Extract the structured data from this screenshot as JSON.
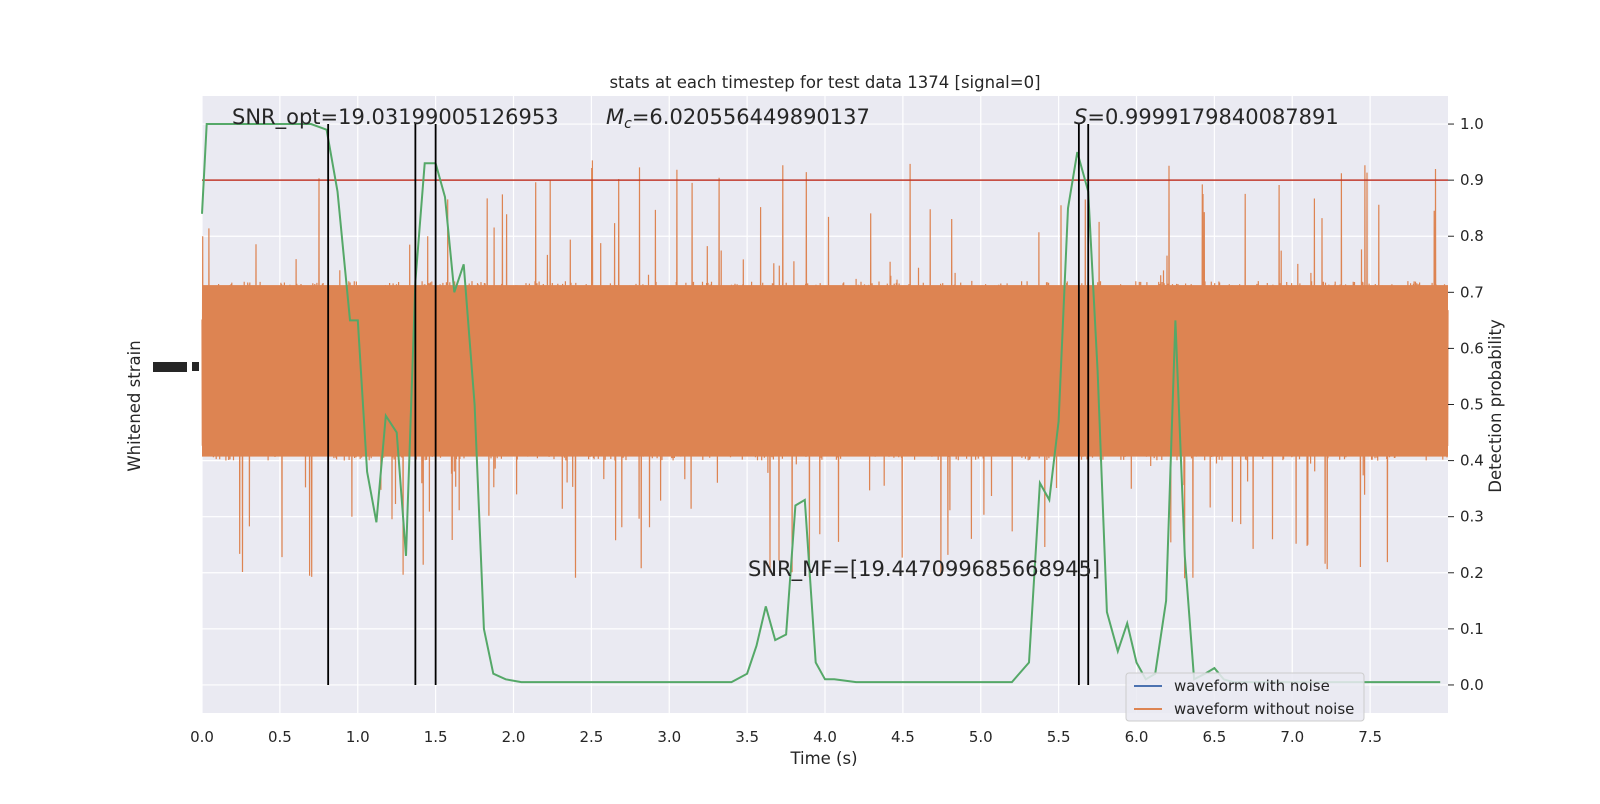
{
  "chart_data": {
    "type": "line",
    "title": "stats at each timestep for test data 1374 [signal=0]",
    "xlabel": "Time (s)",
    "ylabel_left": "Whitened strain",
    "ylabel_right": "Detection probability",
    "xlim": [
      0,
      8
    ],
    "ylim_right": [
      -0.05,
      1.05
    ],
    "grid": true,
    "legend_position": "lower-right",
    "x_ticks": [
      "0.0",
      "0.5",
      "1.0",
      "1.5",
      "2.0",
      "2.5",
      "3.0",
      "3.5",
      "4.0",
      "4.5",
      "5.0",
      "5.5",
      "6.0",
      "6.5",
      "7.0",
      "7.5"
    ],
    "y_ticks_right": [
      "0.0",
      "0.1",
      "0.2",
      "0.3",
      "0.4",
      "0.5",
      "0.6",
      "0.7",
      "0.8",
      "0.9",
      "1.0"
    ],
    "annotations": {
      "snr_opt": "SNR_opt=19.03199005126953",
      "chirp_mass_symbol": "M",
      "chirp_mass_subscript": "c",
      "chirp_mass_value": "=6.020556449890137",
      "s_symbol": "S",
      "s_value": "=0.9999179840087891",
      "snr_mf": "SNR_MF=[19.447099685668945]"
    },
    "threshold": 0.9,
    "vertical_lines": [
      0.81,
      1.37,
      1.5,
      5.63,
      5.69
    ],
    "series": [
      {
        "name": "waveform with noise",
        "color": "#4c72b0",
        "values": []
      },
      {
        "name": "waveform without noise",
        "color": "#dd8452",
        "noise_band": [
          0.4,
          0.72
        ],
        "spike_range": [
          0.2,
          0.99
        ]
      },
      {
        "color": "#55a868",
        "x": [
          0.0,
          0.03,
          0.06,
          0.12,
          0.25,
          0.4,
          0.55,
          0.7,
          0.8,
          0.87,
          0.95,
          1.0,
          1.06,
          1.12,
          1.18,
          1.25,
          1.31,
          1.37,
          1.43,
          1.5,
          1.56,
          1.62,
          1.68,
          1.75,
          1.81,
          1.87,
          1.95,
          2.05,
          2.2,
          2.4,
          2.6,
          2.8,
          3.0,
          3.2,
          3.4,
          3.5,
          3.56,
          3.62,
          3.68,
          3.75,
          3.81,
          3.87,
          3.94,
          4.0,
          4.06,
          4.2,
          4.4,
          4.6,
          4.8,
          5.0,
          5.2,
          5.31,
          5.38,
          5.44,
          5.5,
          5.56,
          5.62,
          5.69,
          5.75,
          5.81,
          5.88,
          5.94,
          6.0,
          6.06,
          6.12,
          6.19,
          6.25,
          6.31,
          6.37,
          6.44,
          6.5,
          6.56,
          6.62,
          6.68,
          6.8,
          7.0,
          7.2,
          7.4,
          7.6,
          7.8,
          7.95
        ],
        "y": [
          0.84,
          1.0,
          1.0,
          1.0,
          1.0,
          1.0,
          1.0,
          1.0,
          0.99,
          0.88,
          0.65,
          0.65,
          0.38,
          0.29,
          0.48,
          0.45,
          0.23,
          0.72,
          0.93,
          0.93,
          0.87,
          0.7,
          0.75,
          0.5,
          0.1,
          0.02,
          0.01,
          0.005,
          0.005,
          0.005,
          0.005,
          0.005,
          0.005,
          0.005,
          0.005,
          0.02,
          0.07,
          0.14,
          0.08,
          0.09,
          0.32,
          0.33,
          0.04,
          0.01,
          0.01,
          0.005,
          0.005,
          0.005,
          0.005,
          0.005,
          0.005,
          0.04,
          0.36,
          0.33,
          0.47,
          0.85,
          0.95,
          0.88,
          0.56,
          0.13,
          0.06,
          0.11,
          0.04,
          0.01,
          0.02,
          0.15,
          0.65,
          0.23,
          0.01,
          0.02,
          0.03,
          0.01,
          0.005,
          0.005,
          0.005,
          0.005,
          0.005,
          0.005,
          0.005,
          0.005,
          0.005
        ]
      }
    ]
  }
}
